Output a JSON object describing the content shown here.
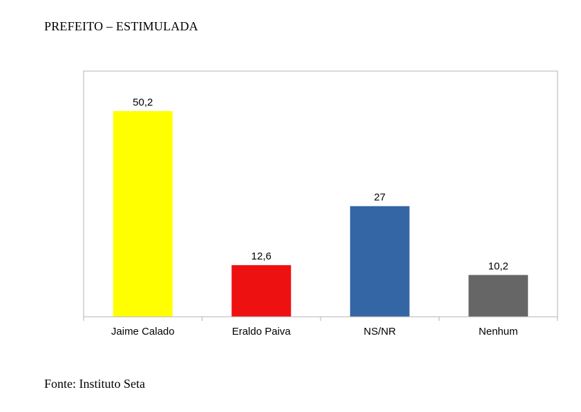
{
  "title": "PREFEITO – ESTIMULADA",
  "source": "Fonte: Instituto Seta",
  "chart_data": {
    "type": "bar",
    "categories": [
      "Jaime Calado",
      "Eraldo Paiva",
      "NS/NR",
      "Nenhum"
    ],
    "values": [
      50.2,
      12.6,
      27,
      10.2
    ],
    "value_labels": [
      "50,2",
      "12,6",
      "27",
      "10,2"
    ],
    "colors": [
      "#ffff00",
      "#ee1111",
      "#3465a4",
      "#666666"
    ],
    "ylim": [
      0,
      50.2
    ],
    "grid": false,
    "legend": "none"
  }
}
